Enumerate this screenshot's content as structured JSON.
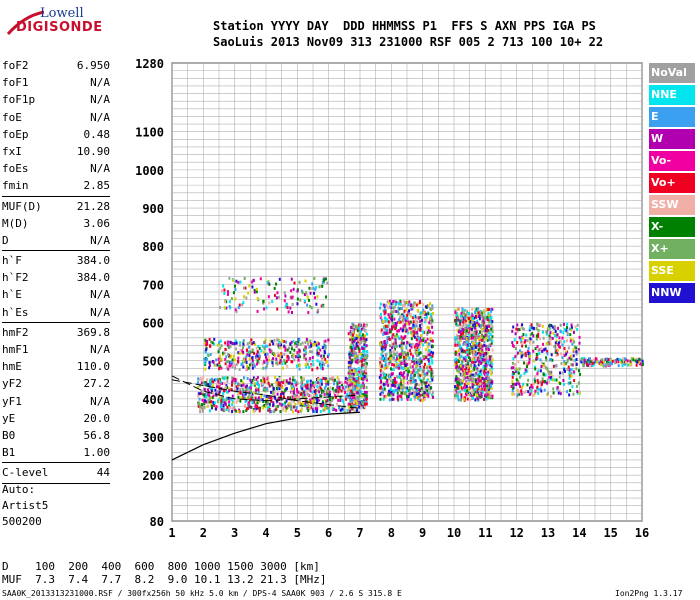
{
  "logo": {
    "line1": "Lowell",
    "line2": "DIGISONDE"
  },
  "header": {
    "line1": "Station YYYY DAY  DDD HHMMSS P1  FFS S AXN PPS IGA PS",
    "line2": "SaoLuis 2013 Nov09 313 231000 RSF 005 2 713 100 10+ 22"
  },
  "params": [
    {
      "label": "foF2",
      "value": "6.950"
    },
    {
      "label": "foF1",
      "value": "N/A"
    },
    {
      "label": "foF1p",
      "value": "N/A"
    },
    {
      "label": "foE",
      "value": "N/A"
    },
    {
      "label": "foEp",
      "value": "0.48"
    },
    {
      "label": "fxI",
      "value": "10.90"
    },
    {
      "label": "foEs",
      "value": "N/A"
    },
    {
      "label": "fmin",
      "value": "2.85"
    },
    {
      "label": "MUF(D)",
      "value": "21.28"
    },
    {
      "label": "M(D)",
      "value": "3.06"
    },
    {
      "label": "D",
      "value": "N/A"
    },
    {
      "label": "h`F",
      "value": "384.0"
    },
    {
      "label": "h`F2",
      "value": "384.0"
    },
    {
      "label": "h`E",
      "value": "N/A"
    },
    {
      "label": "h`Es",
      "value": "N/A"
    },
    {
      "label": "hmF2",
      "value": "369.8"
    },
    {
      "label": "hmF1",
      "value": "N/A"
    },
    {
      "label": "hmE",
      "value": "110.0"
    },
    {
      "label": "yF2",
      "value": "27.2"
    },
    {
      "label": "yF1",
      "value": "N/A"
    },
    {
      "label": "yE",
      "value": "20.0"
    },
    {
      "label": "B0",
      "value": "56.8"
    },
    {
      "label": "B1",
      "value": "1.00"
    },
    {
      "label": "C-level",
      "value": "44"
    }
  ],
  "auto": {
    "line1": "Auto:",
    "line2": "Artist5",
    "line3": "500200"
  },
  "footer": {
    "d_line": "D    100  200  400  600  800 1000 1500 3000 [km]",
    "muf_line": "MUF  7.3  7.4  7.7  8.2  9.0 10.1 13.2 21.3 [MHz]",
    "file": "SAA0K_2013313231000.RSF / 300fx256h 50 kHz 5.0 km / DPS-4 SAA0K 903 / 2.6 S 315.8 E",
    "version": "Ion2Png 1.3.17"
  },
  "legend": [
    {
      "label": "NoVal",
      "color": "#a0a0a0"
    },
    {
      "label": "NNE",
      "color": "#00e5ee"
    },
    {
      "label": "E",
      "color": "#3ca0f0"
    },
    {
      "label": "W",
      "color": "#b000b0"
    },
    {
      "label": "Vo-",
      "color": "#f000a0"
    },
    {
      "label": "Vo+",
      "color": "#f00020"
    },
    {
      "label": "SSW",
      "color": "#f0b0a8"
    },
    {
      "label": "X-",
      "color": "#008000"
    },
    {
      "label": "X+",
      "color": "#70b060"
    },
    {
      "label": "SSE",
      "color": "#d8d000"
    },
    {
      "label": "NNW",
      "color": "#2010d0"
    }
  ],
  "chart_data": {
    "type": "scatter",
    "xlim": [
      1,
      16
    ],
    "ylim": [
      80,
      1280
    ],
    "x_ticks": [
      "1",
      "2",
      "3",
      "4",
      "5",
      "6",
      "7",
      "8",
      "9",
      "10",
      "11",
      "12",
      "13",
      "14",
      "15",
      "16"
    ],
    "y_ticks": [
      "80",
      "200",
      "300",
      "400",
      "500",
      "600",
      "700",
      "800",
      "900",
      "1000",
      "1100",
      "1280"
    ],
    "grid": true,
    "traces": [
      {
        "freq_range": [
          1.8,
          7.0
        ],
        "height_range": [
          370,
          460
        ],
        "density": "high"
      },
      {
        "freq_range": [
          2.0,
          6.0
        ],
        "height_range": [
          480,
          560
        ],
        "density": "medium"
      },
      {
        "freq_range": [
          2.5,
          6.0
        ],
        "height_range": [
          630,
          720
        ],
        "density": "low"
      },
      {
        "freq_range": [
          6.6,
          7.2
        ],
        "height_range": [
          380,
          600
        ],
        "density": "medium"
      },
      {
        "freq_range": [
          7.6,
          9.3
        ],
        "height_range": [
          400,
          660
        ],
        "density": "high"
      },
      {
        "freq_range": [
          10.0,
          11.2
        ],
        "height_range": [
          400,
          640
        ],
        "density": "high"
      },
      {
        "freq_range": [
          11.8,
          14.0
        ],
        "height_range": [
          410,
          600
        ],
        "density": "medium"
      },
      {
        "freq_range": [
          14.0,
          16.0
        ],
        "height_range": [
          490,
          510
        ],
        "density": "low"
      }
    ],
    "profile_curve": [
      [
        1,
        240
      ],
      [
        2,
        280
      ],
      [
        3,
        310
      ],
      [
        4,
        335
      ],
      [
        5,
        350
      ],
      [
        6,
        360
      ],
      [
        7,
        365
      ]
    ],
    "dashed_curves": [
      [
        [
          1,
          460
        ],
        [
          2,
          420
        ],
        [
          3,
          400
        ],
        [
          4,
          395
        ],
        [
          5,
          400
        ],
        [
          6,
          405
        ],
        [
          7,
          410
        ]
      ],
      [
        [
          1,
          450
        ],
        [
          3,
          420
        ],
        [
          4,
          410
        ],
        [
          5,
          395
        ],
        [
          6,
          385
        ],
        [
          7,
          375
        ]
      ]
    ]
  }
}
